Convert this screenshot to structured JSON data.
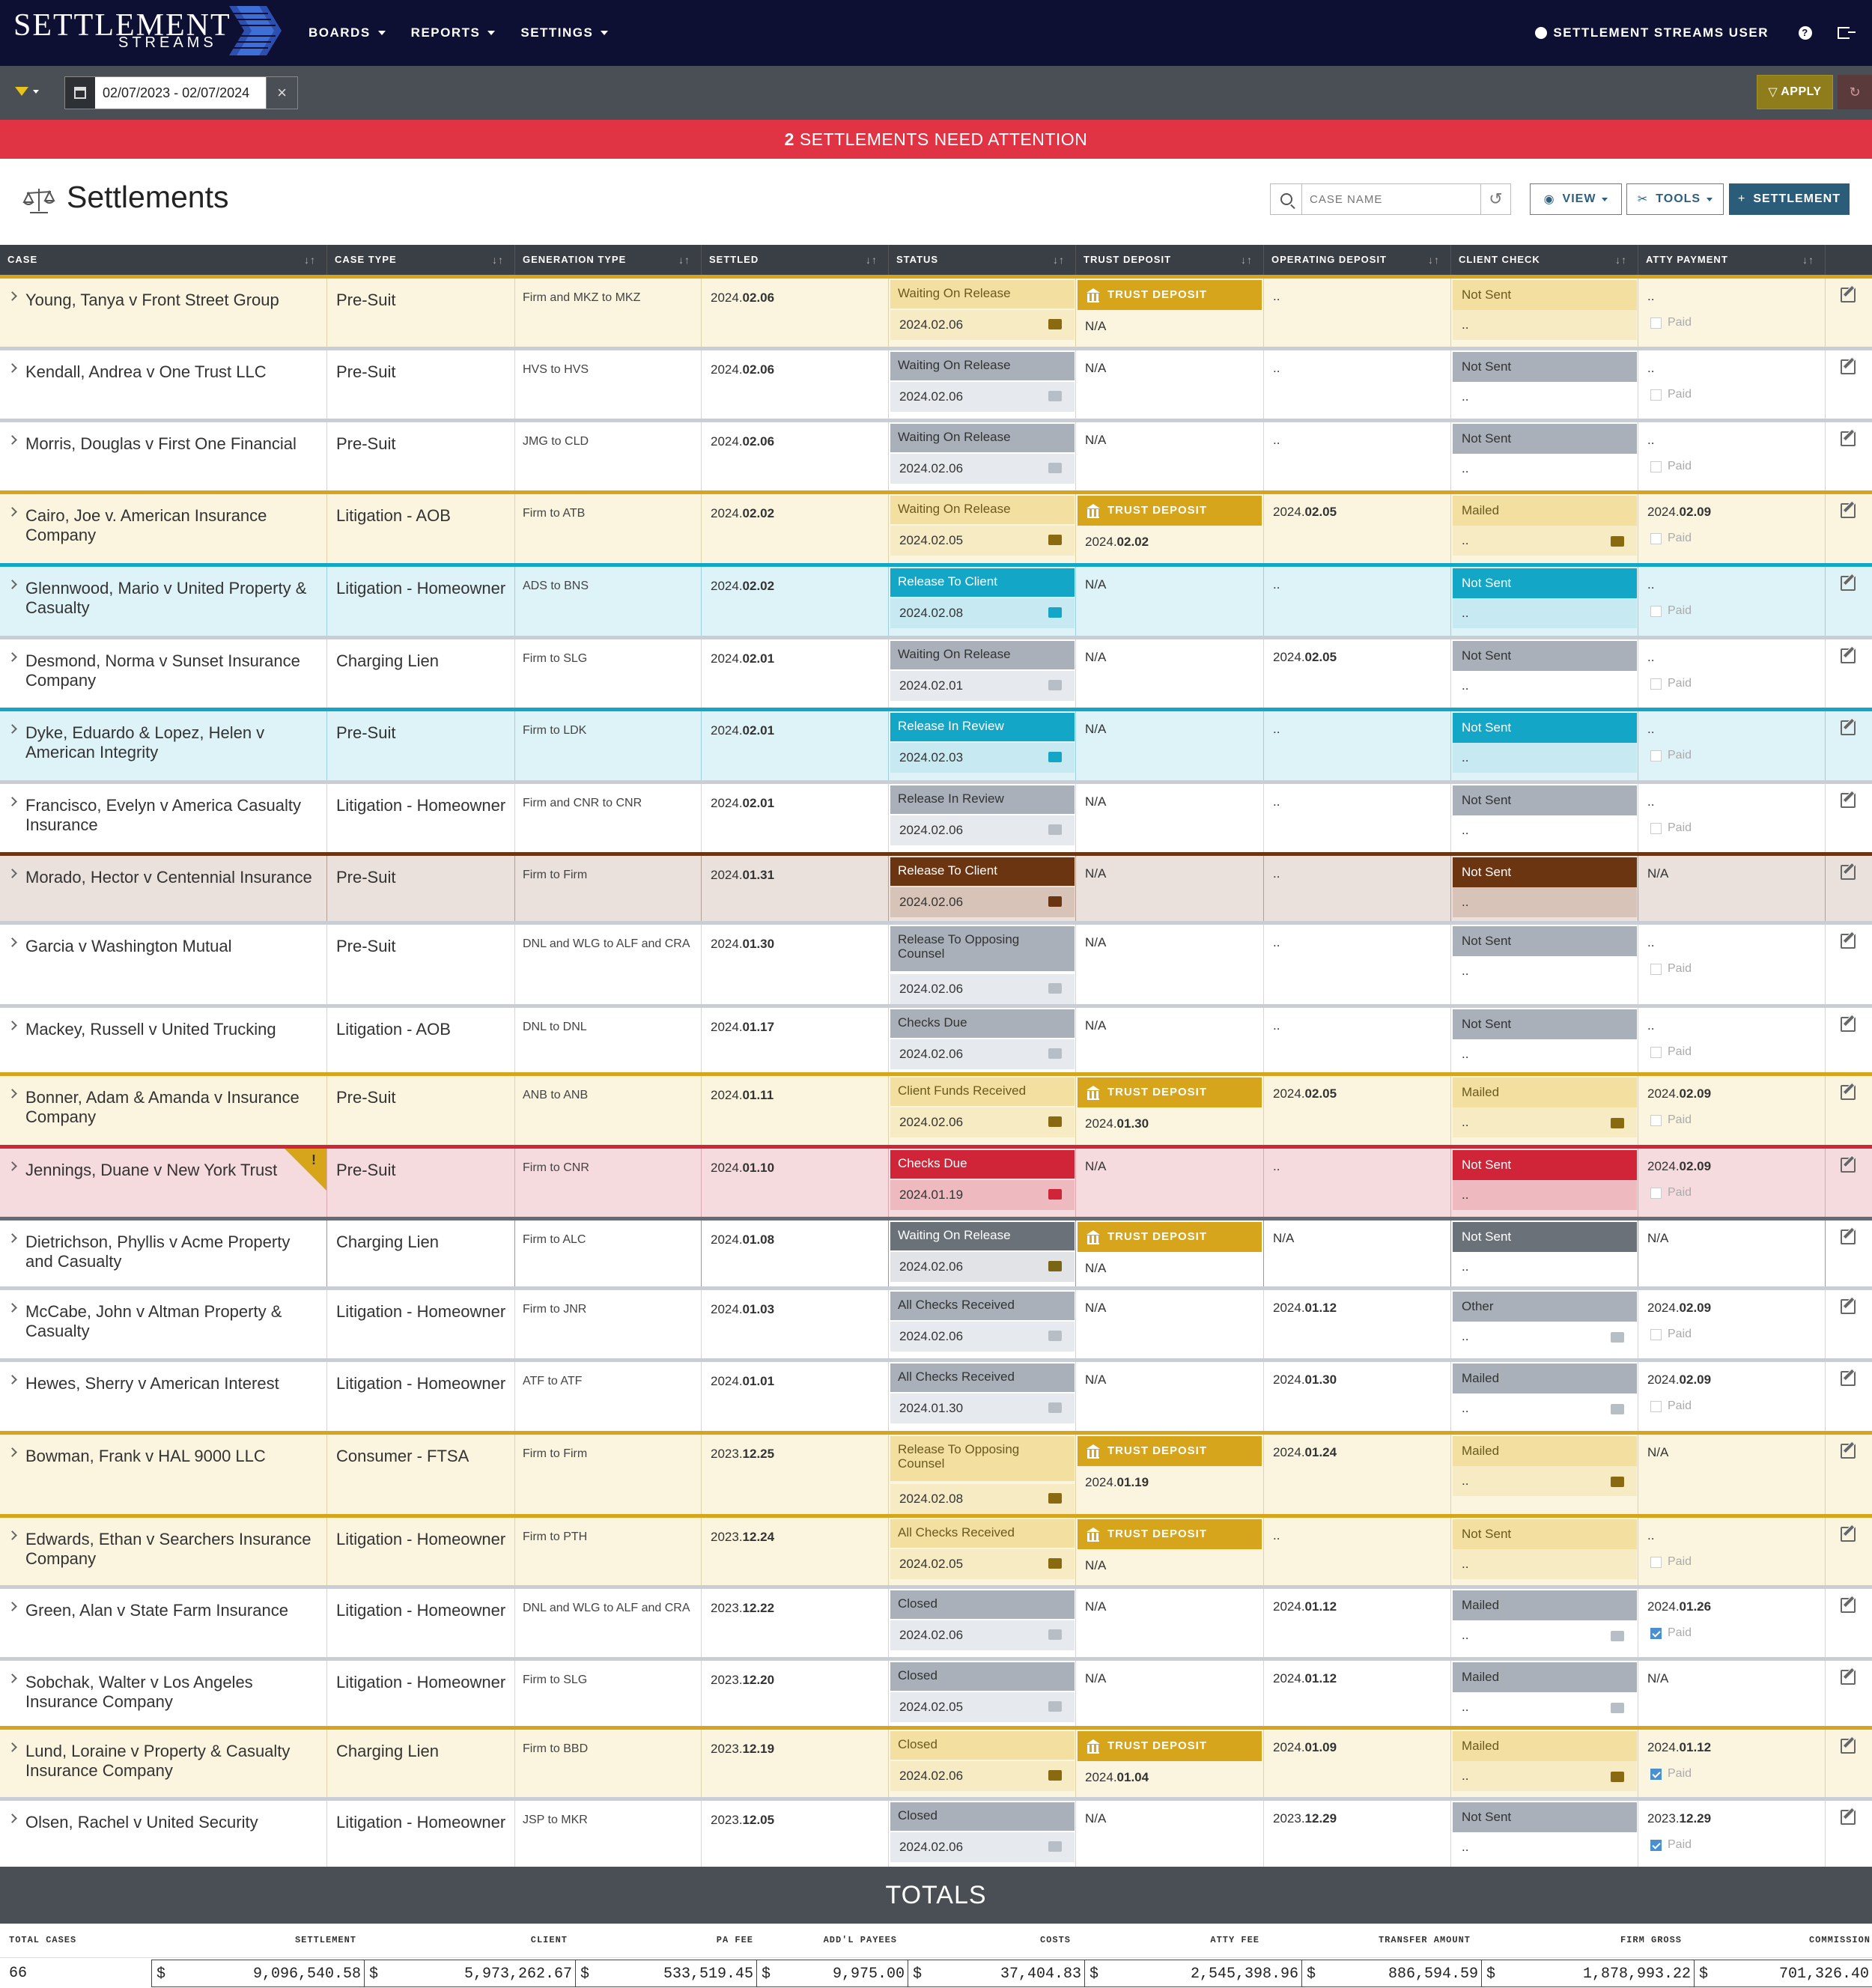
{
  "nav": {
    "logo_main": "SETTLEMENT",
    "logo_sub": "STREAMS",
    "items": [
      {
        "label": "BOARDS"
      },
      {
        "label": "REPORTS"
      },
      {
        "label": "SETTINGS"
      }
    ],
    "user": "SETTLEMENT STREAMS USER",
    "help_icon": "question-icon",
    "logout_icon": "logout-icon"
  },
  "filter": {
    "date_range": "02/07/2023 - 02/07/2024",
    "apply_label": "APPLY"
  },
  "alert": {
    "count": "2",
    "text": " SETTLEMENTS NEED ATTENTION"
  },
  "page": {
    "title": "Settlements",
    "search_placeholder": "CASE NAME",
    "view_label": "VIEW",
    "tools_label": "TOOLS",
    "settlement_label": "SETTLEMENT"
  },
  "columns": [
    "CASE",
    "CASE TYPE",
    "GENERATION TYPE",
    "SETTLED",
    "STATUS",
    "TRUST DEPOSIT",
    "OPERATING DEPOSIT",
    "CLIENT CHECK",
    "ATTY PAYMENT"
  ],
  "colors": {
    "gold": "#d7a51c",
    "cyan": "#14a6c7",
    "brown": "#6b3512",
    "red": "#d02438",
    "gray": "#a4abb5",
    "dark_gray": "#646b72"
  },
  "rows": [
    {
      "case": "Young, Tanya v Front Street Group",
      "type": "Pre-Suit",
      "gen": "Firm and MKZ to MKZ",
      "settled_pre": "2024.",
      "settled_bold": "02.06",
      "status": "Waiting On Release",
      "status_date": "2024.02.06",
      "trust": "TRUST DEPOSIT",
      "trust_date": "N/A",
      "op_pre": "..",
      "op_bold": "",
      "check": "Not Sent",
      "check_sub": "..",
      "atty_pre": "..",
      "atty_bold": "",
      "paid": "Paid"
    },
    {
      "case": "Kendall, Andrea v One Trust LLC",
      "type": "Pre-Suit",
      "gen": "HVS to HVS",
      "settled_pre": "2024.",
      "settled_bold": "02.06",
      "status": "Waiting On Release",
      "status_date": "2024.02.06",
      "trust": "N/A",
      "trust_date": "",
      "op_pre": "..",
      "op_bold": "",
      "check": "Not Sent",
      "check_sub": "..",
      "atty_pre": "..",
      "atty_bold": "",
      "paid": "Paid"
    },
    {
      "case": "Morris, Douglas v First One Financial",
      "type": "Pre-Suit",
      "gen": "JMG to CLD",
      "settled_pre": "2024.",
      "settled_bold": "02.06",
      "status": "Waiting On Release",
      "status_date": "2024.02.06",
      "trust": "N/A",
      "trust_date": "",
      "op_pre": "..",
      "op_bold": "",
      "check": "Not Sent",
      "check_sub": "..",
      "atty_pre": "..",
      "atty_bold": "",
      "paid": "Paid"
    },
    {
      "case": "Cairo, Joe v. American Insurance Company",
      "type": "Litigation - AOB",
      "gen": "Firm to ATB",
      "settled_pre": "2024.",
      "settled_bold": "02.02",
      "status": "Waiting On Release",
      "status_date": "2024.02.05",
      "trust": "TRUST DEPOSIT",
      "trust_date_pre": "2024.",
      "trust_date": "02.02",
      "op_pre": "2024.",
      "op_bold": "02.05",
      "check": "Mailed",
      "check_sub": "..",
      "atty_pre": "2024.",
      "atty_bold": "02.09",
      "paid": "Paid"
    },
    {
      "case": "Glennwood, Mario v United Property & Casualty",
      "type": "Litigation - Homeowner",
      "gen": "ADS to BNS",
      "settled_pre": "2024.",
      "settled_bold": "02.02",
      "status": "Release To Client",
      "status_date": "2024.02.08",
      "trust": "N/A",
      "trust_date": "",
      "op_pre": "..",
      "op_bold": "",
      "check": "Not Sent",
      "check_sub": "..",
      "atty_pre": "..",
      "atty_bold": "",
      "paid": "Paid"
    },
    {
      "case": "Desmond, Norma v Sunset Insurance Company",
      "type": "Charging Lien",
      "gen": "Firm to SLG",
      "settled_pre": "2024.",
      "settled_bold": "02.01",
      "status": "Waiting On Release",
      "status_date": "2024.02.01",
      "trust": "N/A",
      "trust_date": "",
      "op_pre": "2024.",
      "op_bold": "02.05",
      "check": "Not Sent",
      "check_sub": "..",
      "atty_pre": "..",
      "atty_bold": "",
      "paid": "Paid"
    },
    {
      "case": "Dyke, Eduardo & Lopez, Helen v American Integrity",
      "type": "Pre-Suit",
      "gen": "Firm to LDK",
      "settled_pre": "2024.",
      "settled_bold": "02.01",
      "status": "Release In Review",
      "status_date": "2024.02.03",
      "trust": "N/A",
      "trust_date": "",
      "op_pre": "..",
      "op_bold": "",
      "check": "Not Sent",
      "check_sub": "..",
      "atty_pre": "..",
      "atty_bold": "",
      "paid": "Paid"
    },
    {
      "case": "Francisco, Evelyn v America Casualty Insurance",
      "type": "Litigation - Homeowner",
      "gen": "Firm and CNR to CNR",
      "settled_pre": "2024.",
      "settled_bold": "02.01",
      "status": "Release In Review",
      "status_date": "2024.02.06",
      "trust": "N/A",
      "trust_date": "",
      "op_pre": "..",
      "op_bold": "",
      "check": "Not Sent",
      "check_sub": "..",
      "atty_pre": "..",
      "atty_bold": "",
      "paid": "Paid"
    },
    {
      "case": "Morado, Hector v Centennial Insurance",
      "type": "Pre-Suit",
      "gen": "Firm to Firm",
      "settled_pre": "2024.",
      "settled_bold": "01.31",
      "status": "Release To Client",
      "status_date": "2024.02.06",
      "trust": "N/A",
      "trust_date": "",
      "op_pre": "..",
      "op_bold": "",
      "check": "Not Sent",
      "check_sub": "..",
      "atty_pre": "N/A",
      "atty_bold": "",
      "paid": ""
    },
    {
      "case": "Garcia v Washington Mutual",
      "type": "Pre-Suit",
      "gen": "DNL and WLG to ALF and CRA",
      "settled_pre": "2024.",
      "settled_bold": "01.30",
      "status": "Release To Opposing Counsel",
      "status_date": "2024.02.06",
      "trust": "N/A",
      "trust_date": "",
      "op_pre": "..",
      "op_bold": "",
      "check": "Not Sent",
      "check_sub": "..",
      "atty_pre": "..",
      "atty_bold": "",
      "paid": "Paid"
    },
    {
      "case": "Mackey, Russell v United Trucking",
      "type": "Litigation - AOB",
      "gen": "DNL to DNL",
      "settled_pre": "2024.",
      "settled_bold": "01.17",
      "status": "Checks Due",
      "status_date": "2024.02.06",
      "trust": "N/A",
      "trust_date": "",
      "op_pre": "..",
      "op_bold": "",
      "check": "Not Sent",
      "check_sub": "..",
      "atty_pre": "..",
      "atty_bold": "",
      "paid": "Paid"
    },
    {
      "case": "Bonner, Adam & Amanda v Insurance Company",
      "type": "Pre-Suit",
      "gen": "ANB to ANB",
      "settled_pre": "2024.",
      "settled_bold": "01.11",
      "status": "Client Funds Received",
      "status_date": "2024.02.06",
      "trust": "TRUST DEPOSIT",
      "trust_date_pre": "2024.",
      "trust_date": "01.30",
      "op_pre": "2024.",
      "op_bold": "02.05",
      "check": "Mailed",
      "check_sub": "..",
      "atty_pre": "2024.",
      "atty_bold": "02.09",
      "paid": "Paid"
    },
    {
      "case": "Jennings, Duane v New York Trust",
      "type": "Pre-Suit",
      "gen": "Firm to CNR",
      "settled_pre": "2024.",
      "settled_bold": "01.10",
      "status": "Checks Due",
      "status_date": "2024.01.19",
      "trust": "N/A",
      "trust_date": "",
      "op_pre": "..",
      "op_bold": "",
      "check": "Not Sent",
      "check_sub": "..",
      "atty_pre": "2024.",
      "atty_bold": "02.09",
      "paid": "Paid",
      "warn": "!"
    },
    {
      "case": "Dietrichson, Phyllis v Acme Property and Casualty",
      "type": "Charging Lien",
      "gen": "Firm to ALC",
      "settled_pre": "2024.",
      "settled_bold": "01.08",
      "status": "Waiting On Release",
      "status_date": "2024.02.06",
      "trust": "TRUST DEPOSIT",
      "trust_date": "N/A",
      "op_pre": "N/A",
      "op_bold": "",
      "check": "Not Sent",
      "check_sub": "..",
      "atty_pre": "N/A",
      "atty_bold": "",
      "paid": ""
    },
    {
      "case": "McCabe, John v Altman Property & Casualty",
      "type": "Litigation - Homeowner",
      "gen": "Firm to JNR",
      "settled_pre": "2024.",
      "settled_bold": "01.03",
      "status": "All Checks Received",
      "status_date": "2024.02.06",
      "trust": "N/A",
      "trust_date": "",
      "op_pre": "2024.",
      "op_bold": "01.12",
      "check": "Other",
      "check_sub": "..",
      "atty_pre": "2024.",
      "atty_bold": "02.09",
      "paid": "Paid"
    },
    {
      "case": "Hewes, Sherry v American Interest",
      "type": "Litigation - Homeowner",
      "gen": "ATF to ATF",
      "settled_pre": "2024.",
      "settled_bold": "01.01",
      "status": "All Checks Received",
      "status_date": "2024.01.30",
      "trust": "N/A",
      "trust_date": "",
      "op_pre": "2024.",
      "op_bold": "01.30",
      "check": "Mailed",
      "check_sub": "..",
      "atty_pre": "2024.",
      "atty_bold": "02.09",
      "paid": "Paid"
    },
    {
      "case": "Bowman, Frank v HAL 9000 LLC",
      "type": "Consumer - FTSA",
      "gen": "Firm to Firm",
      "settled_pre": "2023.",
      "settled_bold": "12.25",
      "status": "Release To Opposing Counsel",
      "status_date": "2024.02.08",
      "trust": "TRUST DEPOSIT",
      "trust_date_pre": "2024.",
      "trust_date": "01.19",
      "op_pre": "2024.",
      "op_bold": "01.24",
      "check": "Mailed",
      "check_sub": "..",
      "atty_pre": "N/A",
      "atty_bold": "",
      "paid": ""
    },
    {
      "case": "Edwards, Ethan v Searchers Insurance Company",
      "type": "Litigation - Homeowner",
      "gen": "Firm to PTH",
      "settled_pre": "2023.",
      "settled_bold": "12.24",
      "status": "All Checks Received",
      "status_date": "2024.02.05",
      "trust": "TRUST DEPOSIT",
      "trust_date": "N/A",
      "op_pre": "..",
      "op_bold": "",
      "check": "Not Sent",
      "check_sub": "..",
      "atty_pre": "..",
      "atty_bold": "",
      "paid": "Paid"
    },
    {
      "case": "Green, Alan v State Farm Insurance",
      "type": "Litigation - Homeowner",
      "gen": "DNL and WLG to ALF and CRA",
      "settled_pre": "2023.",
      "settled_bold": "12.22",
      "status": "Closed",
      "status_date": "2024.02.06",
      "trust": "N/A",
      "trust_date": "",
      "op_pre": "2024.",
      "op_bold": "01.12",
      "check": "Mailed",
      "check_sub": "..",
      "atty_pre": "2024.",
      "atty_bold": "01.26",
      "paid": "Paid",
      "paid_on": true
    },
    {
      "case": "Sobchak, Walter v Los Angeles Insurance Company",
      "type": "Litigation - Homeowner",
      "gen": "Firm to SLG",
      "settled_pre": "2023.",
      "settled_bold": "12.20",
      "status": "Closed",
      "status_date": "2024.02.05",
      "trust": "N/A",
      "trust_date": "",
      "op_pre": "2024.",
      "op_bold": "01.12",
      "check": "Mailed",
      "check_sub": "..",
      "atty_pre": "N/A",
      "atty_bold": "",
      "paid": ""
    },
    {
      "case": "Lund, Loraine v Property & Casualty Insurance Company",
      "type": "Charging Lien",
      "gen": "Firm to BBD",
      "settled_pre": "2023.",
      "settled_bold": "12.19",
      "status": "Closed",
      "status_date": "2024.02.06",
      "trust": "TRUST DEPOSIT",
      "trust_date_pre": "2024.",
      "trust_date": "01.04",
      "op_pre": "2024.",
      "op_bold": "01.09",
      "check": "Mailed",
      "check_sub": "..",
      "atty_pre": "2024.",
      "atty_bold": "01.12",
      "paid": "Paid",
      "paid_on": true
    },
    {
      "case": "Olsen, Rachel v United Security",
      "type": "Litigation - Homeowner",
      "gen": "JSP to MKR",
      "settled_pre": "2023.",
      "settled_bold": "12.05",
      "status": "Closed",
      "status_date": "2024.02.06",
      "trust": "N/A",
      "trust_date": "",
      "op_pre": "2023.",
      "op_bold": "12.29",
      "check": "Not Sent",
      "check_sub": "..",
      "atty_pre": "2023.",
      "atty_bold": "12.29",
      "paid": "Paid",
      "paid_on": true
    }
  ],
  "totals": {
    "title": "TOTALS",
    "labels": [
      "TOTAL CASES",
      "SETTLEMENT",
      "CLIENT",
      "PA FEE",
      "ADD'L PAYEES",
      "COSTS",
      "ATTY FEE",
      "TRANSFER AMOUNT",
      "FIRM GROSS",
      "COMMISSION"
    ],
    "total_cases": "66",
    "currency": "$",
    "values": [
      "9,096,540.58",
      "5,973,262.67",
      "533,519.45",
      "9,975.00",
      "37,404.83",
      "2,545,398.96",
      "886,594.59",
      "1,878,993.22",
      "701,326.40"
    ]
  }
}
